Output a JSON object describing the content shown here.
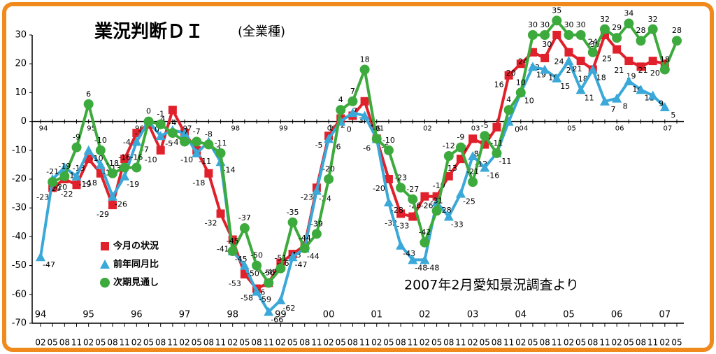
{
  "chart_data": {
    "type": "line",
    "title": "業況判断ＤＩ",
    "subtitle": "(全業種)",
    "annotation": "2007年2月愛知景況調査より",
    "categories": [
      "02",
      "05",
      "08",
      "11",
      "02",
      "05",
      "08",
      "11",
      "02",
      "05",
      "08",
      "11",
      "02",
      "05",
      "08",
      "11",
      "02",
      "05",
      "08",
      "11",
      "02",
      "05",
      "08",
      "11",
      "02",
      "05",
      "08",
      "11",
      "02",
      "05",
      "08",
      "11",
      "02",
      "05",
      "08",
      "11",
      "02",
      "05",
      "08",
      "11",
      "02",
      "05",
      "08",
      "11",
      "02",
      "05",
      "08",
      "11",
      "02",
      "05",
      "08",
      "11",
      "02",
      "05"
    ],
    "year_labels": [
      "94",
      "95",
      "96",
      "97",
      "98",
      "99",
      "00",
      "01",
      "02",
      "03",
      "04",
      "05",
      "06",
      "07"
    ],
    "ylim": [
      -70,
      30
    ],
    "yticks": [
      -70,
      -60,
      -50,
      -40,
      -30,
      -20,
      -10,
      0,
      10,
      20,
      30
    ],
    "series": [
      {
        "name": "今月の状況",
        "color": "#e0202a",
        "marker": "square",
        "values": [
          null,
          -23,
          -20,
          -22,
          -13,
          -18,
          -29,
          -13,
          -4,
          -1,
          -10,
          4,
          -4,
          -10,
          -18,
          -32,
          -41,
          -53,
          -58,
          -56,
          -49,
          -46,
          -43,
          -23,
          -5,
          1,
          2,
          7,
          -6,
          -20,
          -32,
          -33,
          -26,
          -26,
          -19,
          -13,
          -6,
          -8,
          -2,
          16,
          20,
          24,
          22,
          30,
          24,
          21,
          18,
          30,
          25,
          21,
          19,
          21,
          20,
          null
        ]
      },
      {
        "name": "前年同月比",
        "color": "#3aa8d8",
        "marker": "triangle",
        "values": [
          -47,
          -20,
          -16,
          -19,
          -10,
          -15,
          -26,
          -19,
          -7,
          0,
          -5,
          -3,
          -4,
          -11,
          -7,
          -14,
          -45,
          -50,
          -59,
          -66,
          -62,
          -47,
          -44,
          -24,
          -6,
          0,
          3,
          2,
          -6,
          -28,
          -43,
          -48,
          -48,
          -28,
          -33,
          -25,
          -12,
          -16,
          -11,
          0,
          10,
          19,
          18,
          15,
          21,
          11,
          18,
          7,
          8,
          14,
          11,
          9,
          5,
          null
        ]
      },
      {
        "name": "次期見通し",
        "color": "#3caa3c",
        "marker": "circle",
        "values": [
          null,
          -21,
          -19,
          -9,
          6,
          -10,
          -18,
          -16,
          -16,
          0,
          -1,
          -4,
          -7,
          -7,
          -8,
          -11,
          -45,
          -37,
          -50,
          -56,
          -51,
          -35,
          -44,
          -39,
          -20,
          4,
          7,
          18,
          -6,
          -10,
          -23,
          -27,
          -42,
          -31,
          -12,
          -9,
          -21,
          -5,
          -11,
          4,
          10,
          30,
          30,
          35,
          30,
          30,
          24,
          32,
          29,
          34,
          28,
          32,
          18,
          28
        ]
      }
    ],
    "legend": "lower-left",
    "grid": false
  }
}
